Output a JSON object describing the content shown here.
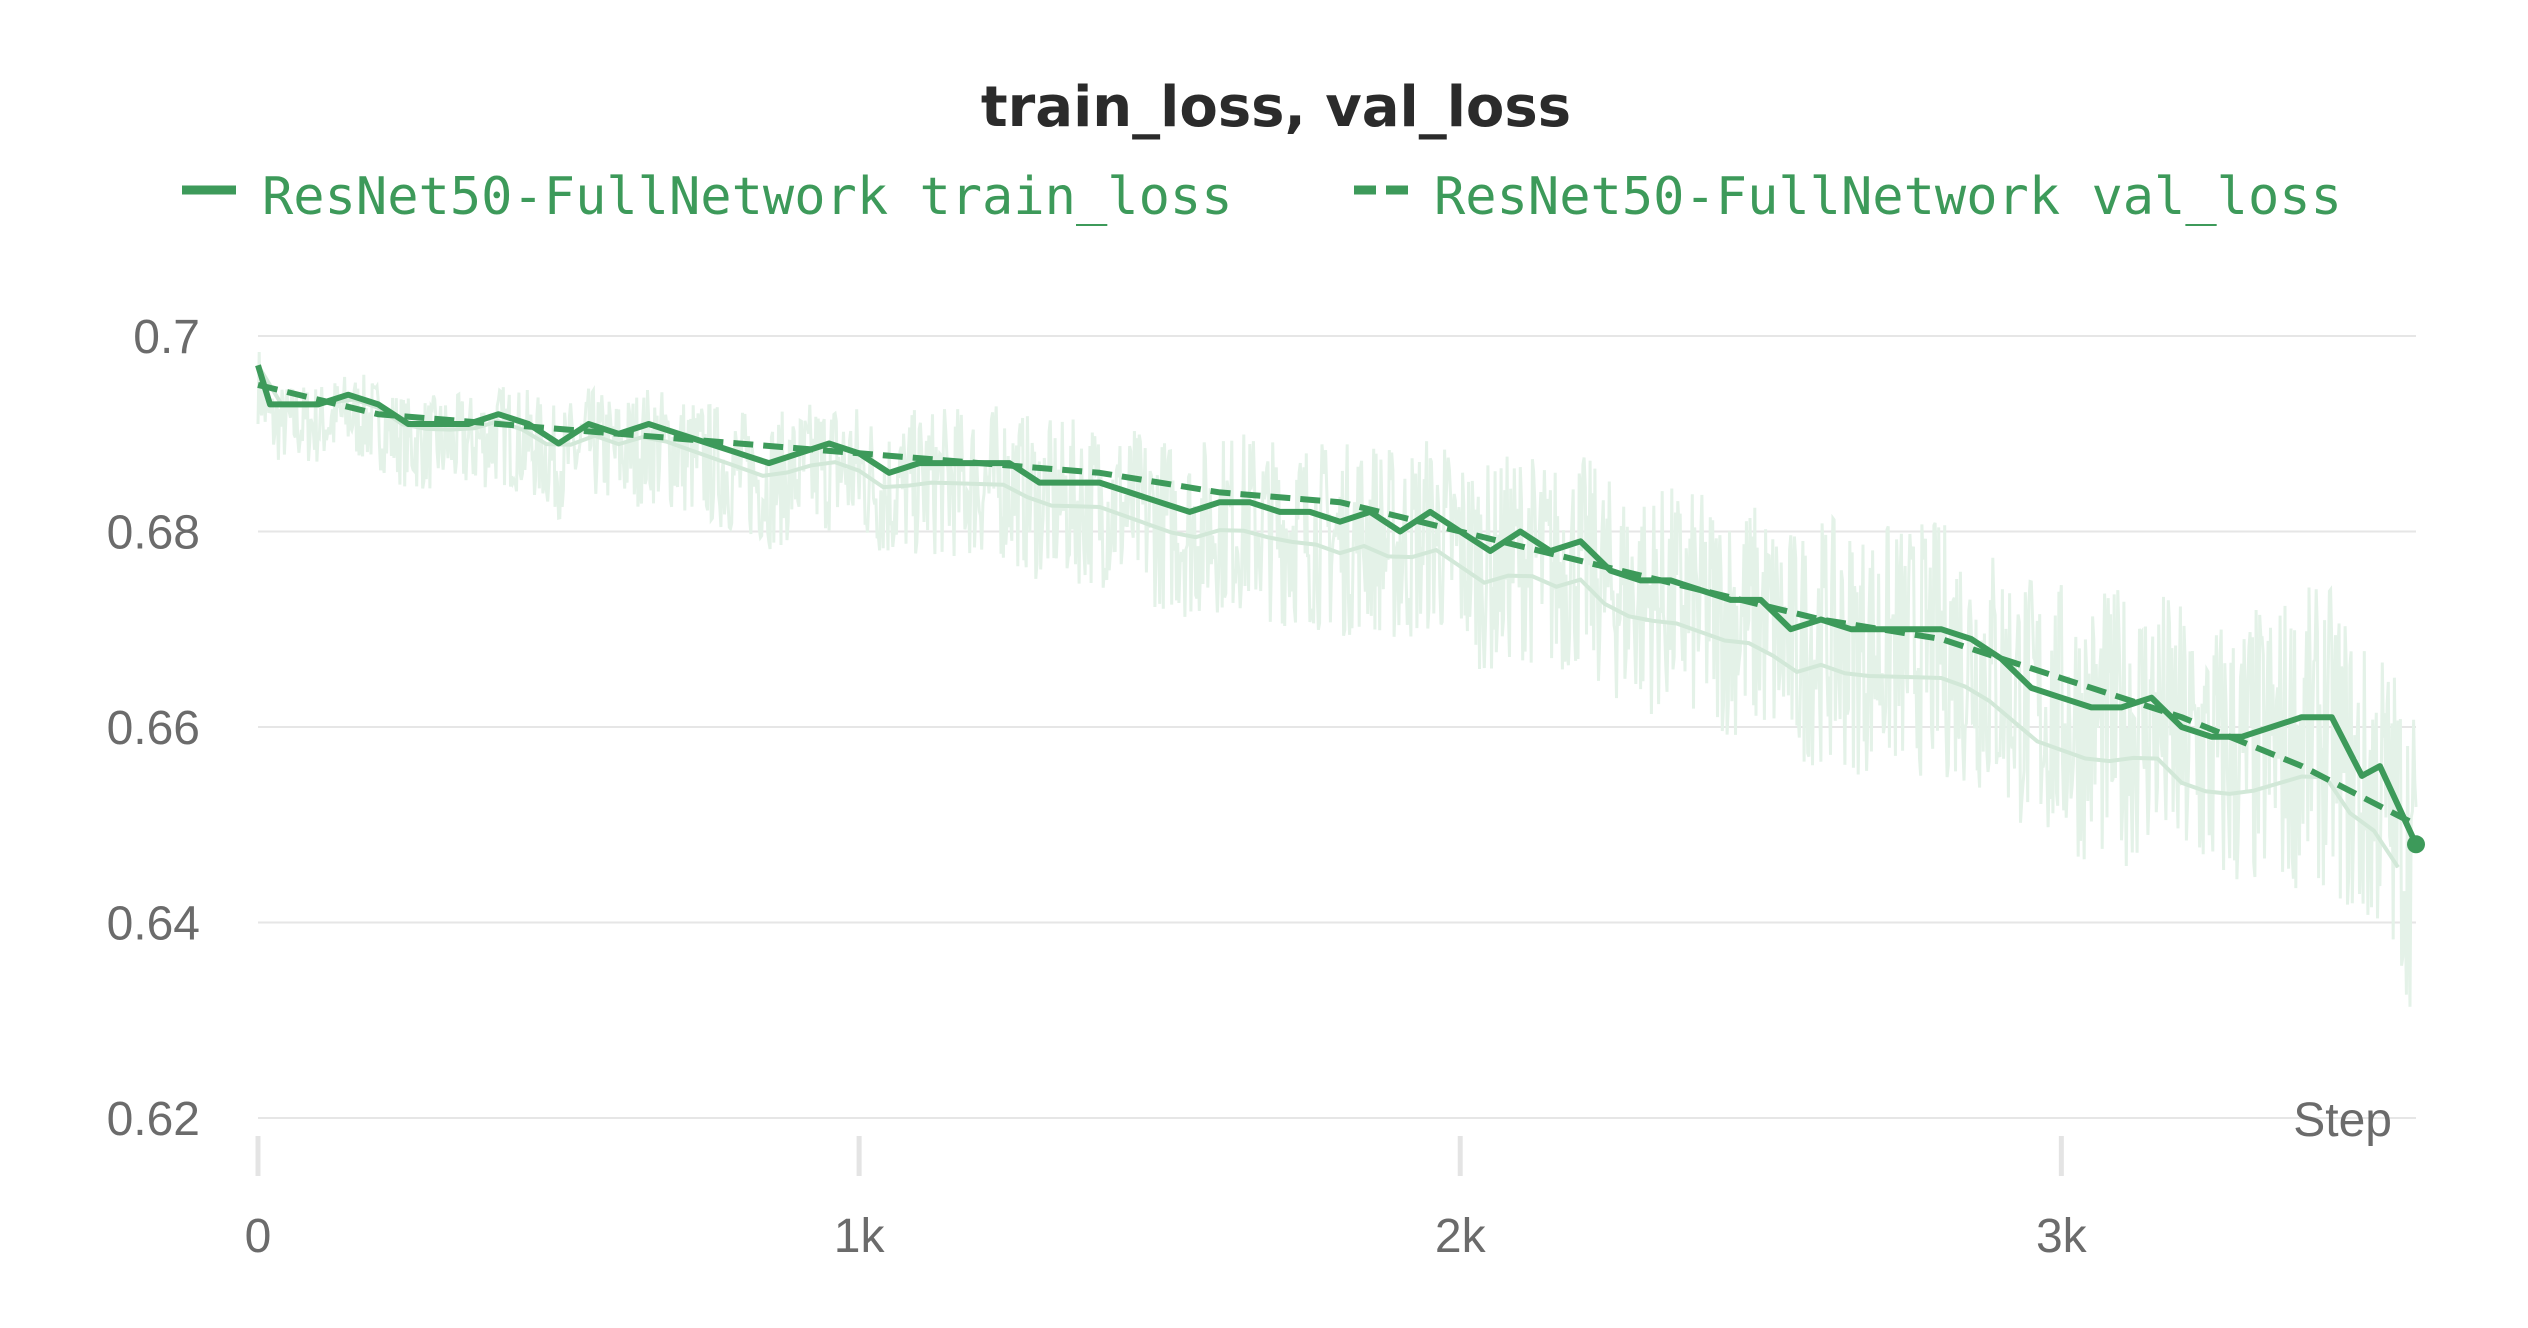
{
  "chart_data": {
    "type": "line",
    "title": "train_loss, val_loss",
    "xlabel": "Step",
    "ylabel": "",
    "xlim": [
      0,
      3590
    ],
    "ylim": [
      0.62,
      0.7
    ],
    "x_ticks": [
      {
        "value": 0,
        "label": "0"
      },
      {
        "value": 1000,
        "label": "1k"
      },
      {
        "value": 2000,
        "label": "2k"
      },
      {
        "value": 3000,
        "label": "3k"
      }
    ],
    "y_ticks": [
      {
        "value": 0.62,
        "label": "0.62"
      },
      {
        "value": 0.64,
        "label": "0.64"
      },
      {
        "value": 0.66,
        "label": "0.66"
      },
      {
        "value": 0.68,
        "label": "0.68"
      },
      {
        "value": 0.7,
        "label": "0.7"
      }
    ],
    "grid": true,
    "legend_position": "top",
    "colors": {
      "series": "#3d9a5a",
      "raw": "#e4f2e8",
      "grid": "#e6e6e6",
      "faint": "#d2e8d8"
    },
    "series": [
      {
        "name": "ResNet50-FullNetwork train_loss",
        "style": "solid",
        "x": [
          0,
          20,
          60,
          100,
          150,
          200,
          250,
          300,
          350,
          400,
          450,
          500,
          550,
          600,
          650,
          700,
          750,
          800,
          850,
          900,
          950,
          1000,
          1050,
          1100,
          1150,
          1200,
          1250,
          1300,
          1350,
          1400,
          1450,
          1500,
          1550,
          1600,
          1650,
          1700,
          1750,
          1800,
          1850,
          1900,
          1950,
          2000,
          2050,
          2100,
          2150,
          2200,
          2250,
          2300,
          2350,
          2400,
          2450,
          2500,
          2550,
          2600,
          2650,
          2700,
          2750,
          2800,
          2850,
          2900,
          2950,
          3000,
          3050,
          3100,
          3150,
          3200,
          3250,
          3300,
          3350,
          3400,
          3450,
          3500,
          3530,
          3560,
          3590
        ],
        "values": [
          0.697,
          0.693,
          0.693,
          0.693,
          0.694,
          0.693,
          0.691,
          0.691,
          0.691,
          0.692,
          0.691,
          0.689,
          0.691,
          0.69,
          0.691,
          0.69,
          0.689,
          0.688,
          0.687,
          0.688,
          0.689,
          0.688,
          0.686,
          0.687,
          0.687,
          0.687,
          0.687,
          0.685,
          0.685,
          0.685,
          0.684,
          0.683,
          0.682,
          0.683,
          0.683,
          0.682,
          0.682,
          0.681,
          0.682,
          0.68,
          0.682,
          0.68,
          0.678,
          0.68,
          0.678,
          0.679,
          0.676,
          0.675,
          0.675,
          0.674,
          0.673,
          0.673,
          0.67,
          0.671,
          0.67,
          0.67,
          0.67,
          0.67,
          0.669,
          0.667,
          0.664,
          0.663,
          0.662,
          0.662,
          0.663,
          0.66,
          0.659,
          0.659,
          0.66,
          0.661,
          0.661,
          0.655,
          0.656,
          0.652,
          0.648
        ]
      },
      {
        "name": "ResNet50-FullNetwork val_loss",
        "style": "dashed",
        "x": [
          0,
          200,
          400,
          600,
          800,
          1000,
          1200,
          1400,
          1600,
          1800,
          2000,
          2200,
          2400,
          2600,
          2800,
          3000,
          3200,
          3400,
          3590
        ],
        "values": [
          0.695,
          0.692,
          0.691,
          0.69,
          0.689,
          0.688,
          0.687,
          0.686,
          0.684,
          0.683,
          0.68,
          0.677,
          0.674,
          0.671,
          0.669,
          0.665,
          0.661,
          0.656,
          0.65
        ]
      }
    ]
  }
}
